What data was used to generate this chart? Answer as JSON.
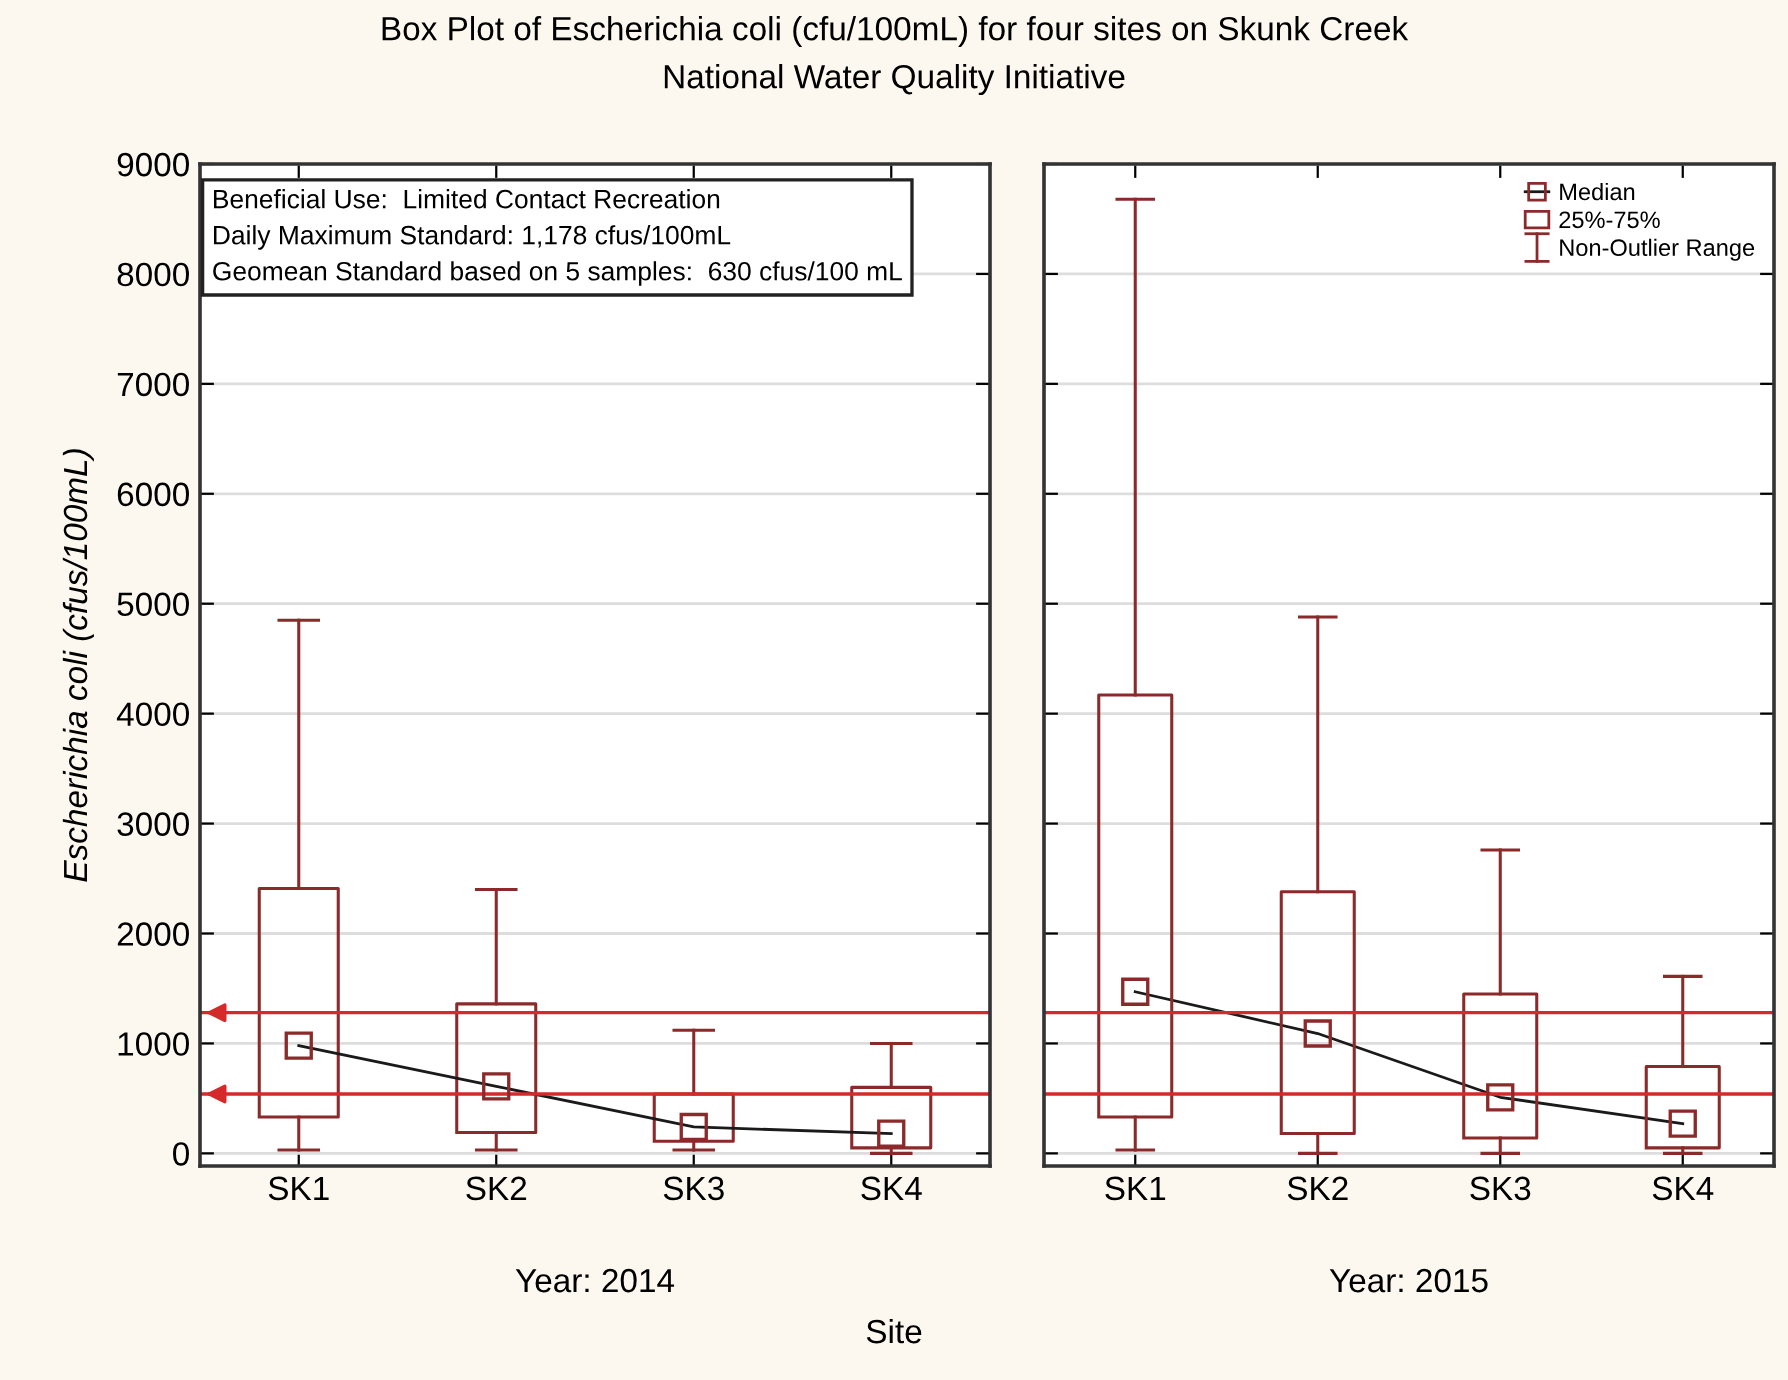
{
  "chart_data": [
    {
      "type": "box",
      "title": "Box Plot of Escherichia coli (cfu/100mL) for four sites on Skunk Creek",
      "subtitle": "National Water Quality Initiative",
      "xlabel": "Year: 2014",
      "ylabel": "Escherichia coli (cfus/100mL)",
      "categories": [
        "SK1",
        "SK2",
        "SK3",
        "SK4"
      ],
      "ylim": [
        -115,
        9000
      ],
      "yticks": [
        0,
        1000,
        2000,
        3000,
        4000,
        5000,
        6000,
        7000,
        8000,
        9000
      ],
      "grid": "y",
      "legend": false,
      "series": [
        {
          "color": "#8b2a2a",
          "marker": "square",
          "boxes": [
            {
              "low": 30,
              "q1": 330,
              "median": 980,
              "q3": 2410,
              "high": 4850
            },
            {
              "low": 30,
              "q1": 190,
              "median": 610,
              "q3": 1360,
              "high": 2400
            },
            {
              "low": 30,
              "q1": 110,
              "median": 240,
              "q3": 540,
              "high": 1120
            },
            {
              "low": 0,
              "q1": 50,
              "median": 180,
              "q3": 600,
              "high": 1000
            }
          ]
        },
        {
          "type": "line",
          "color": "#1a1a1a",
          "values": [
            980,
            610,
            240,
            180
          ]
        }
      ],
      "ref_lines": [
        {
          "axis": "y",
          "value": 1280,
          "color": "#d42a2a"
        },
        {
          "axis": "y",
          "value": 540,
          "color": "#d42a2a"
        }
      ],
      "annotations": [
        "Beneficial Use:  Limited Contact Recreation",
        "Daily Maximum Standard: 1,178 cfus/100mL",
        "Geomean Standard based on 5 samples:  630 cfus/100 mL"
      ]
    },
    {
      "type": "box",
      "xlabel": "Year: 2015",
      "categories": [
        "SK1",
        "SK2",
        "SK3",
        "SK4"
      ],
      "ylim": [
        -115,
        9000
      ],
      "yticks": [
        0,
        1000,
        2000,
        3000,
        4000,
        5000,
        6000,
        7000,
        8000,
        9000
      ],
      "tick_labels": "x",
      "grid": "y",
      "legend": "top right",
      "series": [
        {
          "type": "line",
          "name": "Median",
          "color": "#1a1a1a",
          "values": [
            1470,
            1090,
            510,
            270
          ]
        },
        {
          "name": "25%-75%",
          "color": "#8b2a2a",
          "marker": "square",
          "boxes": [
            {
              "low": 30,
              "q1": 330,
              "median": 1470,
              "q3": 4170,
              "high": 8680
            },
            {
              "low": 0,
              "q1": 180,
              "median": 1090,
              "q3": 2380,
              "high": 4880
            },
            {
              "low": 0,
              "q1": 140,
              "median": 510,
              "q3": 1450,
              "high": 2760
            },
            {
              "low": 0,
              "q1": 50,
              "median": 270,
              "q3": 790,
              "high": 1610
            }
          ]
        }
      ],
      "ref_lines": [
        {
          "axis": "y",
          "value": 1280,
          "color": "#d42a2a"
        },
        {
          "axis": "y",
          "value": 540,
          "color": "#d42a2a"
        }
      ],
      "annotations": [
        "Non-Outlier Range",
        "Site"
      ]
    }
  ]
}
